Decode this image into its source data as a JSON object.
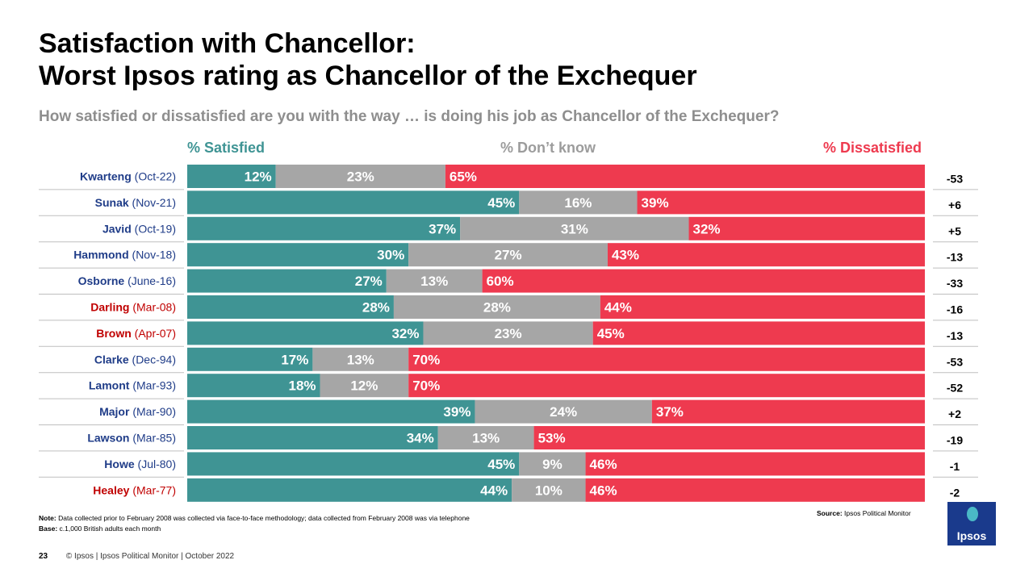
{
  "title": {
    "line1": "Satisfaction with Chancellor:",
    "line2": "Worst Ipsos rating as Chancellor of the Exchequer"
  },
  "subtitle": "How satisfied or dissatisfied are you with the way … is doing his job as Chancellor of the Exchequer?",
  "legend": {
    "satisfied": "% Satisfied",
    "dont_know": "% Don’t know",
    "dissatisfied": "% Dissatisfied"
  },
  "colors": {
    "satisfied": "#3f9494",
    "dont_know": "#a6a6a6",
    "dissatisfied": "#ee3a4f",
    "name_conservative": "#1f3c88",
    "name_labour": "#c00000"
  },
  "chart_data": {
    "type": "bar",
    "orientation": "horizontal",
    "stacked": true,
    "title": "Satisfaction with Chancellor: Worst Ipsos rating as Chancellor of the Exchequer",
    "xlim": [
      0,
      100
    ],
    "categories": [
      {
        "name": "Kwarteng",
        "date": "(Oct-22)",
        "party": "conservative"
      },
      {
        "name": "Sunak",
        "date": "(Nov-21)",
        "party": "conservative"
      },
      {
        "name": "Javid",
        "date": "(Oct-19)",
        "party": "conservative"
      },
      {
        "name": "Hammond",
        "date": " (Nov-18)",
        "party": "conservative"
      },
      {
        "name": "Osborne",
        "date": " (June-16)",
        "party": "conservative"
      },
      {
        "name": "Darling",
        "date": " (Mar-08)",
        "party": "labour"
      },
      {
        "name": "Brown",
        "date": " (Apr-07)",
        "party": "labour"
      },
      {
        "name": "Clarke",
        "date": " (Dec-94)",
        "party": "conservative"
      },
      {
        "name": "Lamont",
        "date": " (Mar-93)",
        "party": "conservative"
      },
      {
        "name": "Major",
        "date": " (Mar-90)",
        "party": "conservative"
      },
      {
        "name": "Lawson",
        "date": " (Mar-85)",
        "party": "conservative"
      },
      {
        "name": "Howe",
        "date": " (Jul-80)",
        "party": "conservative"
      },
      {
        "name": "Healey",
        "date": " (Mar-77)",
        "party": "labour"
      }
    ],
    "series": [
      {
        "name": "% Satisfied",
        "values": [
          12,
          45,
          37,
          30,
          27,
          28,
          32,
          17,
          18,
          39,
          34,
          45,
          44
        ]
      },
      {
        "name": "% Don’t know",
        "values": [
          23,
          16,
          31,
          27,
          13,
          28,
          23,
          13,
          12,
          24,
          13,
          9,
          10
        ]
      },
      {
        "name": "% Dissatisfied",
        "values": [
          65,
          39,
          32,
          43,
          60,
          44,
          45,
          70,
          70,
          37,
          53,
          46,
          46
        ]
      }
    ],
    "net": [
      "-53",
      "+6",
      "+5",
      "-13",
      "-33",
      "-16",
      "-13",
      "-53",
      "-52",
      "+2",
      "-19",
      "-1",
      "-2"
    ]
  },
  "note": {
    "label": "Note:",
    "text": " Data collected prior to February 2008 was collected via face-to-face methodology; data collected from February 2008 was via telephone"
  },
  "base": {
    "label": "Base:",
    "text": " c.1,000 British adults each month"
  },
  "source": {
    "label": "Source:",
    "text": " Ipsos  Political Monitor"
  },
  "footer": {
    "page": "23",
    "text": "© Ipsos | Ipsos  Political Monitor | October 2022"
  },
  "logo": {
    "text": "Ipsos"
  }
}
